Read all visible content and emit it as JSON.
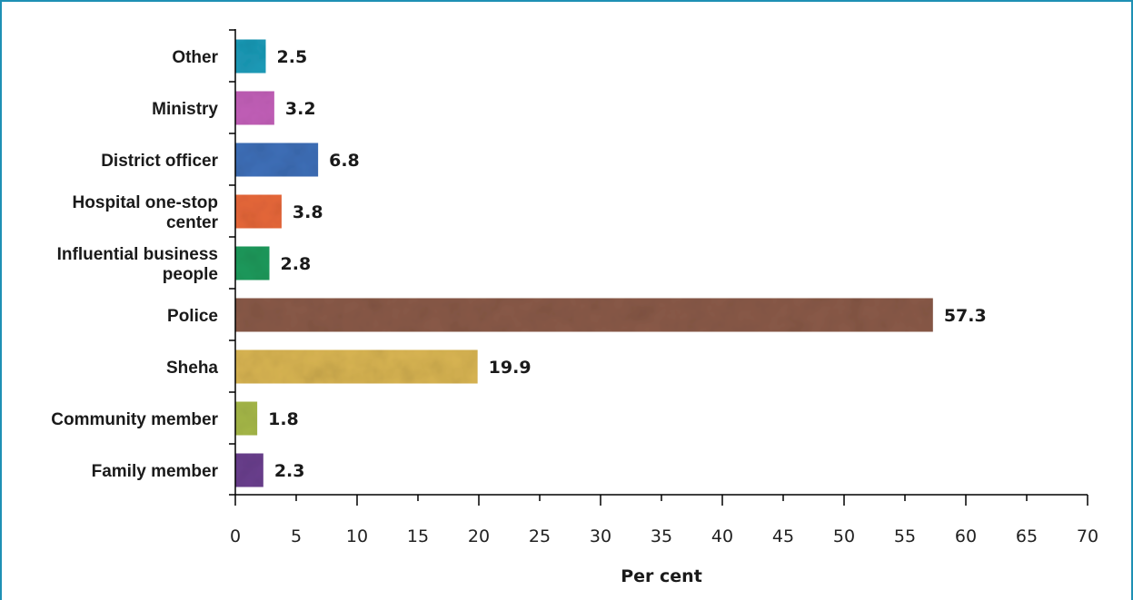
{
  "chart_data": {
    "type": "bar",
    "orientation": "horizontal",
    "title": "",
    "xlabel": "Per cent",
    "ylabel": "",
    "xlim": [
      0,
      70
    ],
    "xticks": [
      0,
      5,
      10,
      15,
      20,
      25,
      30,
      35,
      40,
      45,
      50,
      55,
      60,
      65,
      70
    ],
    "xtick_labels": [
      "0",
      "5",
      "10",
      "15",
      "20",
      "25",
      "30",
      "35",
      "40",
      "45",
      "50",
      "55",
      "60",
      "65",
      "70"
    ],
    "grid": false,
    "legend": "none",
    "categories": [
      [
        "Other"
      ],
      [
        "Ministry"
      ],
      [
        "District officer"
      ],
      [
        "Hospital one-stop",
        "center"
      ],
      [
        "Influential business",
        "people"
      ],
      [
        "Police"
      ],
      [
        "Sheha"
      ],
      [
        "Community member"
      ],
      [
        "Family member"
      ]
    ],
    "values": [
      2.5,
      3.2,
      6.8,
      3.8,
      2.8,
      57.3,
      19.9,
      1.8,
      2.3
    ],
    "value_labels": [
      "2.5",
      "3.2",
      "6.8",
      "3.8",
      "2.8",
      "57.3",
      "19.9",
      "1.8",
      "2.3"
    ],
    "colors": [
      "#1b9bb8",
      "#c25fb8",
      "#3e6fb8",
      "#e8683a",
      "#1f9a5c",
      "#8a5a48",
      "#d8b452",
      "#a6b848",
      "#6a3f8e"
    ]
  }
}
